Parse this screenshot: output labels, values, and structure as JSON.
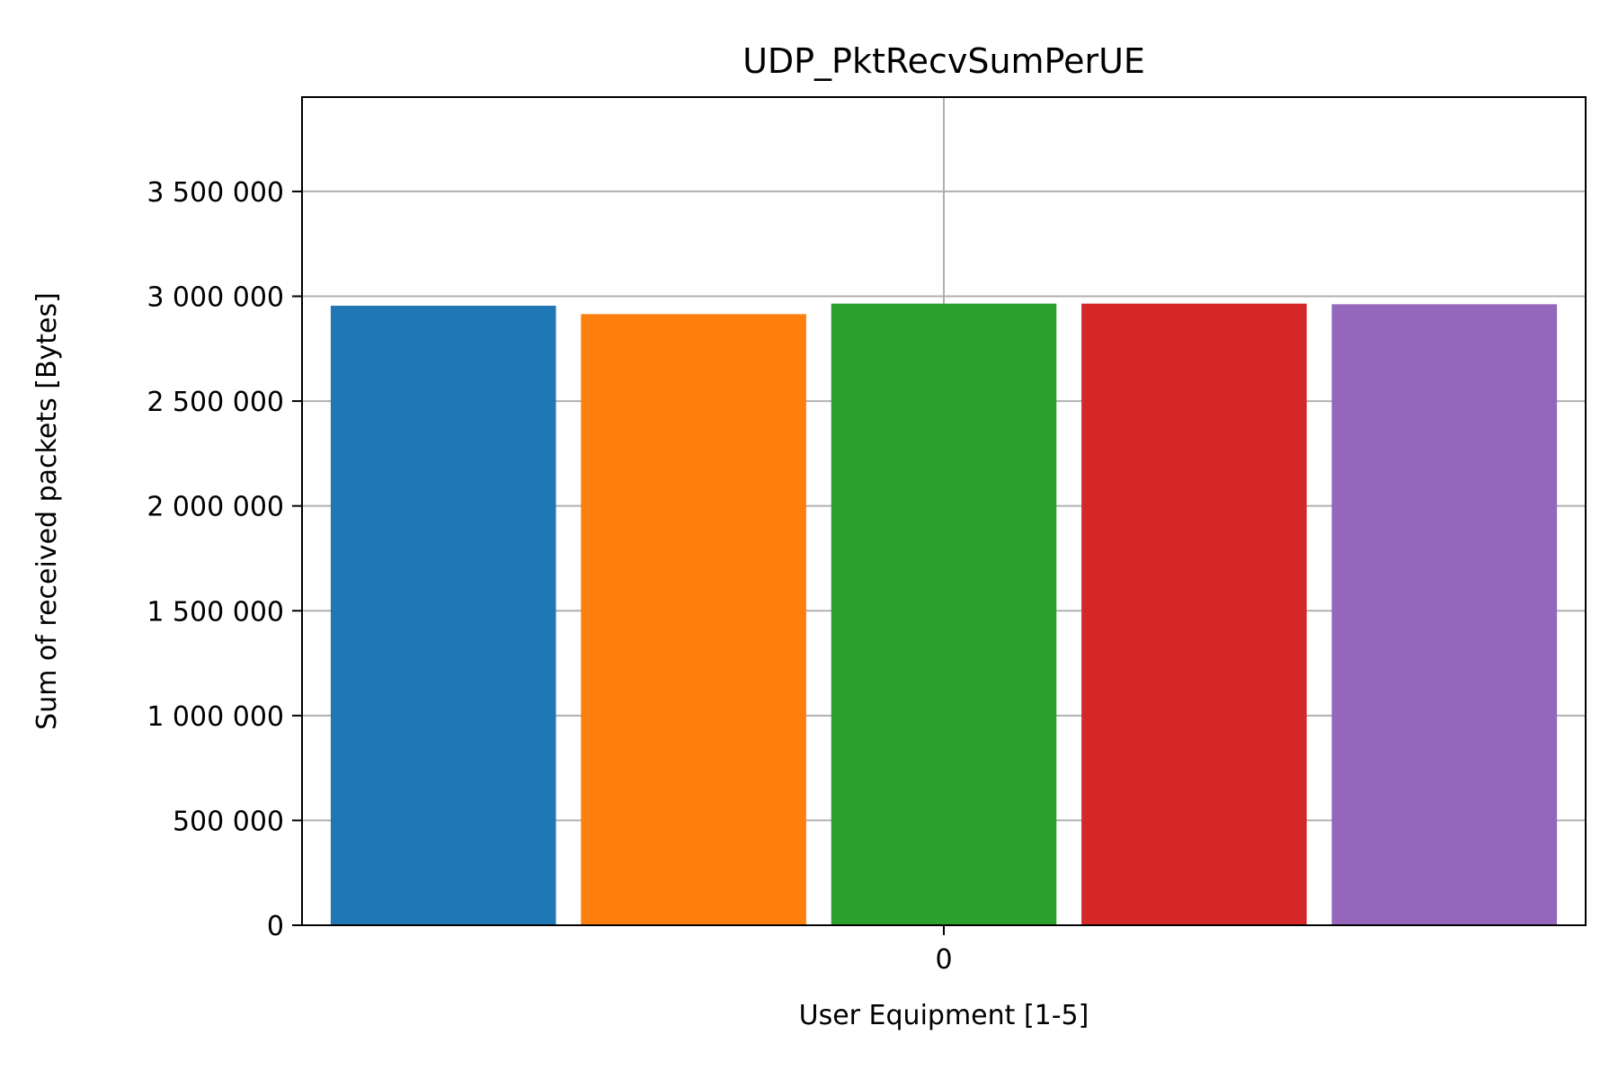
{
  "chart_data": {
    "type": "bar",
    "title": "UDP_PktRecvSumPerUE",
    "xlabel": "User Equipment [1-5]",
    "ylabel": "Sum of received packets [Bytes]",
    "categories": [
      "0"
    ],
    "series": [
      {
        "values": [
          2955000
        ],
        "color": "#1f77b4"
      },
      {
        "values": [
          2915000
        ],
        "color": "#ff7f0e"
      },
      {
        "values": [
          2965000
        ],
        "color": "#2ca02c"
      },
      {
        "values": [
          2965000
        ],
        "color": "#d62728"
      },
      {
        "values": [
          2962000
        ],
        "color": "#9467bd"
      }
    ],
    "ylim": [
      0,
      3950000
    ],
    "yticks": [
      0,
      500000,
      1000000,
      1500000,
      2000000,
      2500000,
      3000000,
      3500000
    ],
    "ytick_labels": [
      "0",
      "500 000",
      "1 000 000",
      "1 500 000",
      "2 000 000",
      "2 500 000",
      "3 000 000",
      "3 500 000"
    ],
    "grid": true,
    "legend": false
  }
}
